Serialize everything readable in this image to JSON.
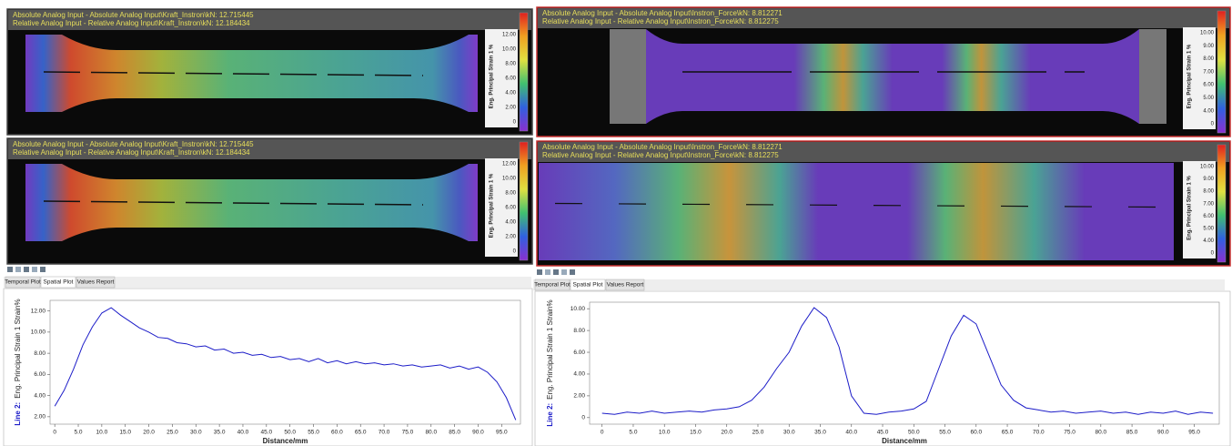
{
  "panels": [
    {
      "images": [
        {
          "overlay": [
            "Absolute Analog Input - Absolute Analog Input\\Kraft_Instron\\kN: 12.715445",
            "Relative Analog Input - Relative Analog Input\\Kraft_Instron\\kN: 12.184434"
          ],
          "colorbar": {
            "title": "Eng. Principal Strain 1 %",
            "ticks": [
              "12.00",
              "10.00",
              "8.00",
              "6.00",
              "4.00",
              "2.00",
              "0"
            ]
          }
        },
        {
          "overlay": [
            "Absolute Analog Input - Absolute Analog Input\\Kraft_Instron\\kN: 12.715445",
            "Relative Analog Input - Relative Analog Input\\Kraft_Instron\\kN: 12.184434"
          ],
          "colorbar": {
            "title": "Eng. Principal Strain 1 %",
            "ticks": [
              "12.00",
              "10.00",
              "8.00",
              "6.00",
              "4.00",
              "2.00",
              "0"
            ]
          }
        }
      ],
      "tabs": [
        "Temporal Plot",
        "Spatial Plot",
        "Values Report"
      ]
    },
    {
      "images": [
        {
          "overlay": [
            "Absolute Analog Input - Absolute Analog Input\\Instron_Force\\kN: 8.812271",
            "Relative Analog Input - Relative Analog Input\\Instron_Force\\kN: 8.812275"
          ],
          "colorbar": {
            "title": "Eng. Principal Strain 1 %",
            "ticks": [
              "10.00",
              "9.00",
              "8.00",
              "7.00",
              "6.00",
              "5.00",
              "4.00",
              "0"
            ]
          }
        },
        {
          "overlay": [
            "Absolute Analog Input - Absolute Analog Input\\Instron_Force\\kN: 8.812271",
            "Relative Analog Input - Relative Analog Input\\Instron_Force\\kN: 8.812275"
          ],
          "colorbar": {
            "title": "Eng. Principal Strain 1 %",
            "ticks": [
              "10.00",
              "9.00",
              "8.00",
              "7.00",
              "6.00",
              "5.00",
              "4.00",
              "0"
            ]
          }
        }
      ],
      "tabs": [
        "Temporal Plot",
        "Spatial Plot",
        "Values Report"
      ]
    }
  ],
  "chart_data": [
    {
      "type": "line",
      "xlabel": "Distance/mm",
      "ylabel": "Eng. Principal Strain 1 Strain%",
      "x": [
        0,
        2,
        4,
        6,
        8,
        10,
        12,
        14,
        16,
        18,
        20,
        22,
        24,
        26,
        28,
        30,
        32,
        34,
        36,
        38,
        40,
        42,
        44,
        46,
        48,
        50,
        52,
        54,
        56,
        58,
        60,
        62,
        64,
        66,
        68,
        70,
        72,
        74,
        76,
        78,
        80,
        82,
        84,
        86,
        88,
        90,
        92,
        94,
        96,
        98
      ],
      "series": [
        {
          "name": "Line 2:",
          "color": "#1c1cc8",
          "values": [
            3.0,
            4.5,
            6.5,
            8.8,
            10.5,
            11.8,
            12.3,
            11.6,
            11.0,
            10.4,
            10.0,
            9.5,
            9.4,
            9.0,
            8.9,
            8.6,
            8.7,
            8.3,
            8.4,
            8.0,
            8.1,
            7.8,
            7.9,
            7.6,
            7.7,
            7.4,
            7.5,
            7.2,
            7.5,
            7.1,
            7.3,
            7.0,
            7.2,
            7.0,
            7.1,
            6.9,
            7.0,
            6.8,
            6.9,
            6.7,
            6.8,
            6.9,
            6.6,
            6.8,
            6.5,
            6.7,
            6.2,
            5.3,
            3.8,
            1.7
          ]
        }
      ],
      "xlim": [
        -1,
        99
      ],
      "xticks": [
        0,
        {
          "value": 5,
          "label": "5.0"
        },
        {
          "value": 10,
          "label": "10.0"
        },
        {
          "value": 15,
          "label": "15.0"
        },
        {
          "value": 20,
          "label": "20.0"
        },
        {
          "value": 25,
          "label": "25.0"
        },
        {
          "value": 30,
          "label": "30.0"
        },
        {
          "value": 35,
          "label": "35.0"
        },
        {
          "value": 40,
          "label": "40.0"
        },
        {
          "value": 45,
          "label": "45.0"
        },
        {
          "value": 50,
          "label": "50.0"
        },
        {
          "value": 55,
          "label": "55.0"
        },
        {
          "value": 60,
          "label": "60.0"
        },
        {
          "value": 65,
          "label": "65.0"
        },
        {
          "value": 70,
          "label": "70.0"
        },
        {
          "value": 75,
          "label": "75.0"
        },
        {
          "value": 80,
          "label": "80.0"
        },
        {
          "value": 85,
          "label": "85.0"
        },
        {
          "value": 90,
          "label": "90.0"
        },
        {
          "value": 95,
          "label": "95.0"
        }
      ],
      "ylim": [
        1.3,
        13
      ],
      "yticks": [
        {
          "value": 2,
          "label": "2.00"
        },
        {
          "value": 4,
          "label": "4.00"
        },
        {
          "value": 6,
          "label": "6.00"
        },
        {
          "value": 8,
          "label": "8.00"
        },
        {
          "value": 10,
          "label": "10.00"
        },
        {
          "value": 12,
          "label": "12.00"
        }
      ]
    },
    {
      "type": "line",
      "xlabel": "Distance/mm",
      "ylabel": "Eng. Principal Strain 1 Strain%",
      "x": [
        0,
        2,
        4,
        6,
        8,
        10,
        12,
        14,
        16,
        18,
        20,
        22,
        24,
        26,
        28,
        30,
        32,
        34,
        36,
        38,
        40,
        42,
        44,
        46,
        48,
        50,
        52,
        54,
        56,
        58,
        60,
        62,
        64,
        66,
        68,
        70,
        72,
        74,
        76,
        78,
        80,
        82,
        84,
        86,
        88,
        90,
        92,
        94,
        96,
        98
      ],
      "series": [
        {
          "name": "Line 2:",
          "color": "#1c1cc8",
          "values": [
            0.4,
            0.3,
            0.5,
            0.4,
            0.6,
            0.4,
            0.5,
            0.6,
            0.5,
            0.7,
            0.8,
            1.0,
            1.6,
            2.8,
            4.5,
            6.0,
            8.4,
            10.1,
            9.2,
            6.5,
            2.0,
            0.4,
            0.3,
            0.5,
            0.6,
            0.8,
            1.5,
            4.5,
            7.5,
            9.4,
            8.6,
            5.8,
            3.0,
            1.6,
            0.9,
            0.7,
            0.5,
            0.6,
            0.4,
            0.5,
            0.6,
            0.4,
            0.5,
            0.3,
            0.5,
            0.4,
            0.6,
            0.3,
            0.5,
            0.4
          ]
        }
      ],
      "xlim": [
        -2,
        99
      ],
      "xticks": [
        0,
        {
          "value": 5,
          "label": "5.0"
        },
        {
          "value": 10,
          "label": "10.0"
        },
        {
          "value": 15,
          "label": "15.0"
        },
        {
          "value": 20,
          "label": "20.0"
        },
        {
          "value": 25,
          "label": "25.0"
        },
        {
          "value": 30,
          "label": "30.0"
        },
        {
          "value": 35,
          "label": "35.0"
        },
        {
          "value": 40,
          "label": "40.0"
        },
        {
          "value": 45,
          "label": "45.0"
        },
        {
          "value": 50,
          "label": "50.0"
        },
        {
          "value": 55,
          "label": "55.0"
        },
        {
          "value": 60,
          "label": "60.0"
        },
        {
          "value": 65,
          "label": "65.0"
        },
        {
          "value": 70,
          "label": "70.0"
        },
        {
          "value": 75,
          "label": "75.0"
        },
        {
          "value": 80,
          "label": "80.0"
        },
        {
          "value": 85,
          "label": "85.0"
        },
        {
          "value": 90,
          "label": "90.0"
        },
        {
          "value": 95,
          "label": "95.0"
        }
      ],
      "ylim": [
        -0.6,
        10.6
      ],
      "yticks": [
        0,
        {
          "value": 2,
          "label": "2.00"
        },
        {
          "value": 4,
          "label": "4.00"
        },
        {
          "value": 6,
          "label": "6.00"
        },
        {
          "value": 8,
          "label": "8.00"
        },
        {
          "value": 10,
          "label": "10.00"
        }
      ]
    }
  ]
}
